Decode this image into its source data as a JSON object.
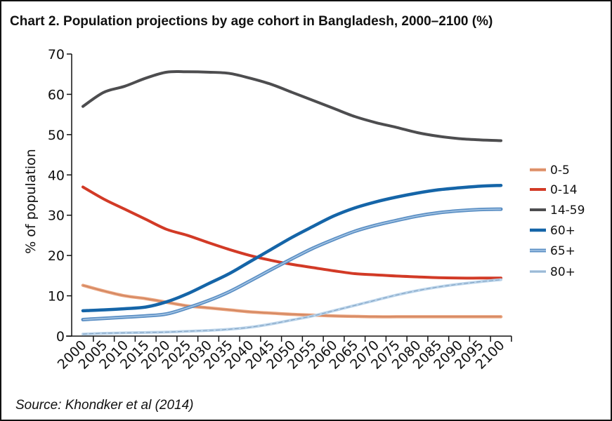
{
  "chart_data": {
    "type": "line",
    "title": "Chart 2. Population projections by age cohort in Bangladesh, 2000–2100 (%)",
    "xlabel": "",
    "ylabel": "% of population",
    "source": "Source: Khondker et al (2014)",
    "ylim": [
      0,
      70
    ],
    "yticks": [
      "0",
      "10",
      "20",
      "30",
      "40",
      "50",
      "60",
      "70"
    ],
    "x": [
      "2000",
      "2005",
      "2010",
      "2015",
      "2020",
      "2025",
      "2030",
      "2035",
      "2040",
      "2045",
      "2050",
      "2055",
      "2060",
      "2065",
      "2070",
      "2075",
      "2080",
      "2085",
      "2090",
      "2095",
      "2100"
    ],
    "grid": false,
    "legend": "right",
    "series": [
      {
        "name": "0-5",
        "color": "#e8a07a",
        "values": [
          12.6,
          11.2,
          10,
          9.3,
          8.4,
          7.5,
          7,
          6.5,
          6,
          5.7,
          5.4,
          5.2,
          5,
          4.9,
          4.8,
          4.8,
          4.8,
          4.8,
          4.8,
          4.8,
          4.8
        ]
      },
      {
        "name": "0-14",
        "color": "#d23a26",
        "values": [
          37,
          34,
          31.5,
          29,
          26.5,
          25,
          23.2,
          21.5,
          20,
          18.8,
          17.8,
          17,
          16.2,
          15.5,
          15.2,
          14.9,
          14.7,
          14.5,
          14.4,
          14.4,
          14.4
        ]
      },
      {
        "name": "14-59",
        "color": "#4d4d4f",
        "values": [
          57,
          60.5,
          62,
          64,
          65.5,
          65.6,
          65.5,
          65.2,
          64,
          62.5,
          60.5,
          58.5,
          56.5,
          54.5,
          53,
          51.8,
          50.5,
          49.6,
          49,
          48.7,
          48.5
        ]
      },
      {
        "name": "60+",
        "color": "#1565a8",
        "values": [
          6.3,
          6.5,
          6.8,
          7.2,
          8.5,
          10.5,
          13,
          15.5,
          18.5,
          21.5,
          24.5,
          27.2,
          29.8,
          31.8,
          33.3,
          34.5,
          35.5,
          36.3,
          36.8,
          37.2,
          37.4
        ]
      },
      {
        "name": "65+",
        "color": "#5b8fc4",
        "values": [
          4.1,
          4.4,
          4.7,
          5,
          5.5,
          7,
          8.8,
          11,
          13.7,
          16.5,
          19.2,
          21.8,
          24,
          26,
          27.5,
          28.7,
          29.8,
          30.6,
          31.1,
          31.4,
          31.5
        ]
      },
      {
        "name": "80+",
        "color": "#b9d3ea",
        "values": [
          0.5,
          0.7,
          0.8,
          0.9,
          1,
          1.2,
          1.4,
          1.7,
          2.2,
          3,
          4,
          5,
          6.3,
          7.6,
          8.9,
          10.2,
          11.3,
          12.2,
          12.9,
          13.5,
          14
        ]
      }
    ]
  }
}
